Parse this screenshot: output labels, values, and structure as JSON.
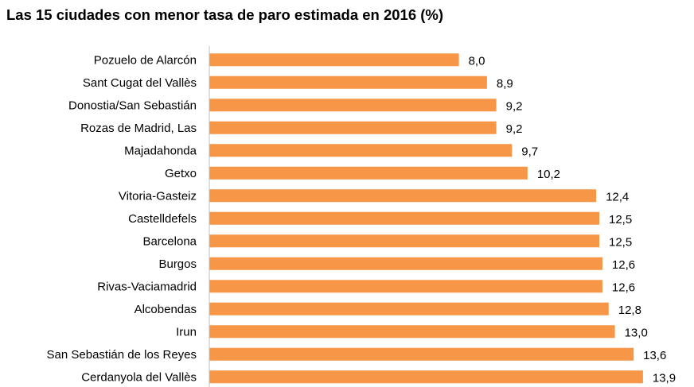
{
  "chart_data": {
    "type": "bar",
    "orientation": "horizontal",
    "title": "Las 15 ciudades con menor tasa de paro estimada en 2016 (%)",
    "categories": [
      "Pozuelo de Alarcón",
      "Sant Cugat del Vallès",
      "Donostia/San Sebastián",
      "Rozas de Madrid, Las",
      "Majadahonda",
      "Getxo",
      "Vitoria-Gasteiz",
      "Castelldefels",
      "Barcelona",
      "Burgos",
      "Rivas-Vaciamadrid",
      "Alcobendas",
      "Irun",
      "San Sebastián de los Reyes",
      "Cerdanyola del Vallès"
    ],
    "values": [
      8.0,
      8.9,
      9.2,
      9.2,
      9.7,
      10.2,
      12.4,
      12.5,
      12.5,
      12.6,
      12.6,
      12.8,
      13.0,
      13.6,
      13.9
    ],
    "value_labels": [
      "8,0",
      "8,9",
      "9,2",
      "9,2",
      "9,7",
      "10,2",
      "12,4",
      "12,5",
      "12,5",
      "12,6",
      "12,6",
      "12,8",
      "13,0",
      "13,6",
      "13,9"
    ],
    "xlim": [
      0,
      15
    ],
    "grid": false,
    "legend": "none",
    "bar_color": "#F79646",
    "axis_color": "#BFBFBF"
  }
}
